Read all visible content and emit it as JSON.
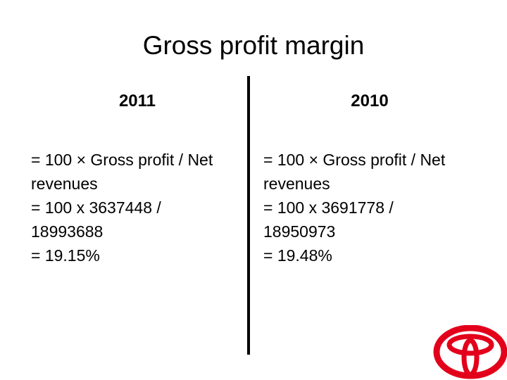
{
  "slide": {
    "title": "Gross profit margin",
    "columns": [
      {
        "year": "2011",
        "lines": [
          "= 100 × Gross profit / Net",
          "revenues",
          "= 100 x 3637448 /",
          "18993688",
          "= 19.15%"
        ]
      },
      {
        "year": "2010",
        "lines": [
          "= 100 × Gross profit / Net",
          "revenues",
          "= 100 x 3691778 /",
          "18950973",
          "= 19.48%"
        ]
      }
    ],
    "logo": {
      "icon": "toyota-logo-icon",
      "color": "#e3001b"
    }
  }
}
